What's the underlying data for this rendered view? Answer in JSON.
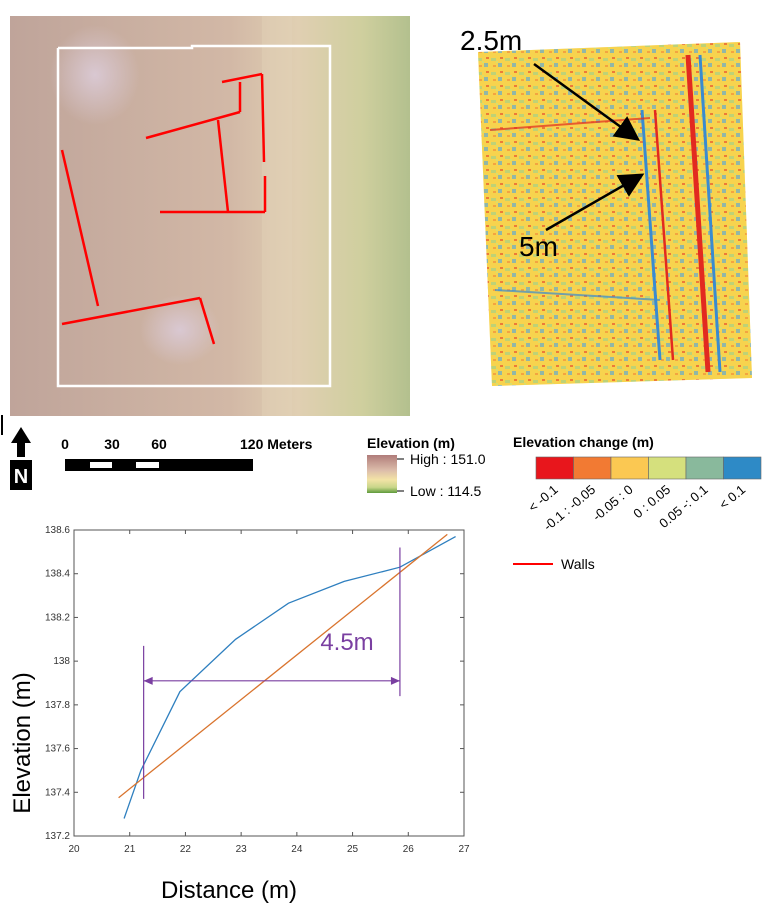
{
  "map_panel": {
    "box_color": "#ffffff",
    "wall_color": "#ff0000"
  },
  "change_panel": {
    "annotations": [
      "2.5m",
      "5m"
    ]
  },
  "north_arrow": {
    "label": "N"
  },
  "scale_bar": {
    "ticks": [
      "0",
      "30",
      "60",
      "120 Meters"
    ]
  },
  "legend_elevation": {
    "title": "Elevation (m)",
    "high_label": "High : 151.0",
    "low_label": "Low : 114.5"
  },
  "legend_change": {
    "title": "Elevation change (m)",
    "classes": [
      {
        "label": "< -0.1",
        "color": "#e8161c"
      },
      {
        "label": "-0.1 : -0.05",
        "color": "#f27a33"
      },
      {
        "label": "-0.05 : 0",
        "color": "#fbc852"
      },
      {
        "label": "0 : 0.05",
        "color": "#d5e07d"
      },
      {
        "label": "0.05 -: 0.1",
        "color": "#89b99c"
      },
      {
        "label": "< 0.1",
        "color": "#2e8ac6"
      }
    ],
    "walls_label": "Walls"
  },
  "chart_data": {
    "type": "line",
    "title": "",
    "xlabel": "Distance (m)",
    "ylabel": "Elevation (m)",
    "xlim": [
      20,
      27
    ],
    "ylim": [
      137.2,
      138.6
    ],
    "x_ticks": [
      "20",
      "21",
      "22",
      "23",
      "24",
      "25",
      "26",
      "27"
    ],
    "y_ticks": [
      "137.2",
      "137.4",
      "137.6",
      "137.8",
      "138",
      "138.2",
      "138.4",
      "138.6"
    ],
    "grid": false,
    "series": [
      {
        "color": "#2e7fbf",
        "points": [
          [
            20.9,
            137.28
          ],
          [
            21.2,
            137.5
          ],
          [
            21.9,
            137.86
          ],
          [
            22.9,
            138.1
          ],
          [
            23.85,
            138.265
          ],
          [
            24.85,
            138.365
          ],
          [
            25.85,
            138.43
          ],
          [
            26.85,
            138.57
          ]
        ]
      },
      {
        "color": "#d9742e",
        "points": [
          [
            20.8,
            137.375
          ],
          [
            26.7,
            138.58
          ]
        ]
      }
    ],
    "annotation": {
      "label": "4.5m",
      "color": "#7a3fa1",
      "x_start": 21.25,
      "x_end": 25.85,
      "y": 137.91
    }
  }
}
